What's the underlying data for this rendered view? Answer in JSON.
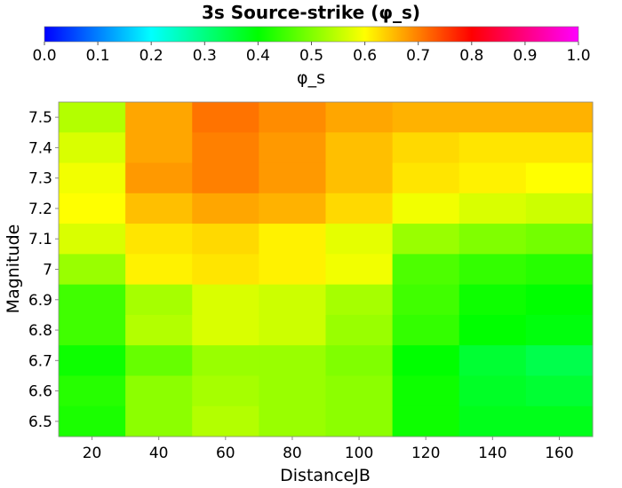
{
  "chart_data": {
    "type": "heatmap",
    "title": "3s Source-strike (φ_s)",
    "xlabel": "DistanceJB",
    "ylabel": "Magnitude",
    "x": [
      20,
      40,
      60,
      80,
      100,
      120,
      140,
      160
    ],
    "x_ticks": [
      "20",
      "40",
      "60",
      "80",
      "100",
      "120",
      "140",
      "160"
    ],
    "y": [
      7.5,
      7.4,
      7.3,
      7.2,
      7.1,
      7.0,
      6.9,
      6.8,
      6.7,
      6.6,
      6.5
    ],
    "y_ticks": [
      "7.5",
      "7.4",
      "7.3",
      "7.2",
      "7.1",
      "7",
      "6.9",
      "6.8",
      "6.7",
      "6.6",
      "6.5"
    ],
    "xlim": [
      10,
      170
    ],
    "ylim": [
      6.45,
      7.55
    ],
    "values": [
      [
        0.54,
        0.67,
        0.71,
        0.69,
        0.67,
        0.66,
        0.66,
        0.66
      ],
      [
        0.57,
        0.67,
        0.7,
        0.68,
        0.65,
        0.63,
        0.62,
        0.62
      ],
      [
        0.59,
        0.68,
        0.7,
        0.68,
        0.65,
        0.62,
        0.61,
        0.6
      ],
      [
        0.6,
        0.65,
        0.67,
        0.66,
        0.63,
        0.59,
        0.57,
        0.56
      ],
      [
        0.57,
        0.62,
        0.63,
        0.61,
        0.58,
        0.52,
        0.5,
        0.49
      ],
      [
        0.52,
        0.61,
        0.62,
        0.61,
        0.59,
        0.46,
        0.44,
        0.43
      ],
      [
        0.45,
        0.53,
        0.57,
        0.56,
        0.53,
        0.45,
        0.41,
        0.4
      ],
      [
        0.45,
        0.54,
        0.57,
        0.56,
        0.52,
        0.44,
        0.4,
        0.39
      ],
      [
        0.41,
        0.48,
        0.52,
        0.52,
        0.5,
        0.4,
        0.36,
        0.34
      ],
      [
        0.43,
        0.51,
        0.53,
        0.52,
        0.51,
        0.41,
        0.37,
        0.36
      ],
      [
        0.42,
        0.51,
        0.54,
        0.52,
        0.51,
        0.41,
        0.38,
        0.38
      ]
    ],
    "colorbar": {
      "label": "φ_s",
      "range": [
        0,
        1
      ],
      "ticks": [
        "0.0",
        "0.1",
        "0.2",
        "0.3",
        "0.4",
        "0.5",
        "0.6",
        "0.7",
        "0.8",
        "0.9",
        "1.0"
      ],
      "stops": [
        "#0000ff",
        "#00ffff",
        "#00ff00",
        "#ffff00",
        "#ff0000",
        "#ff00ff"
      ]
    },
    "grid": false,
    "legend": "colorbar-top"
  }
}
